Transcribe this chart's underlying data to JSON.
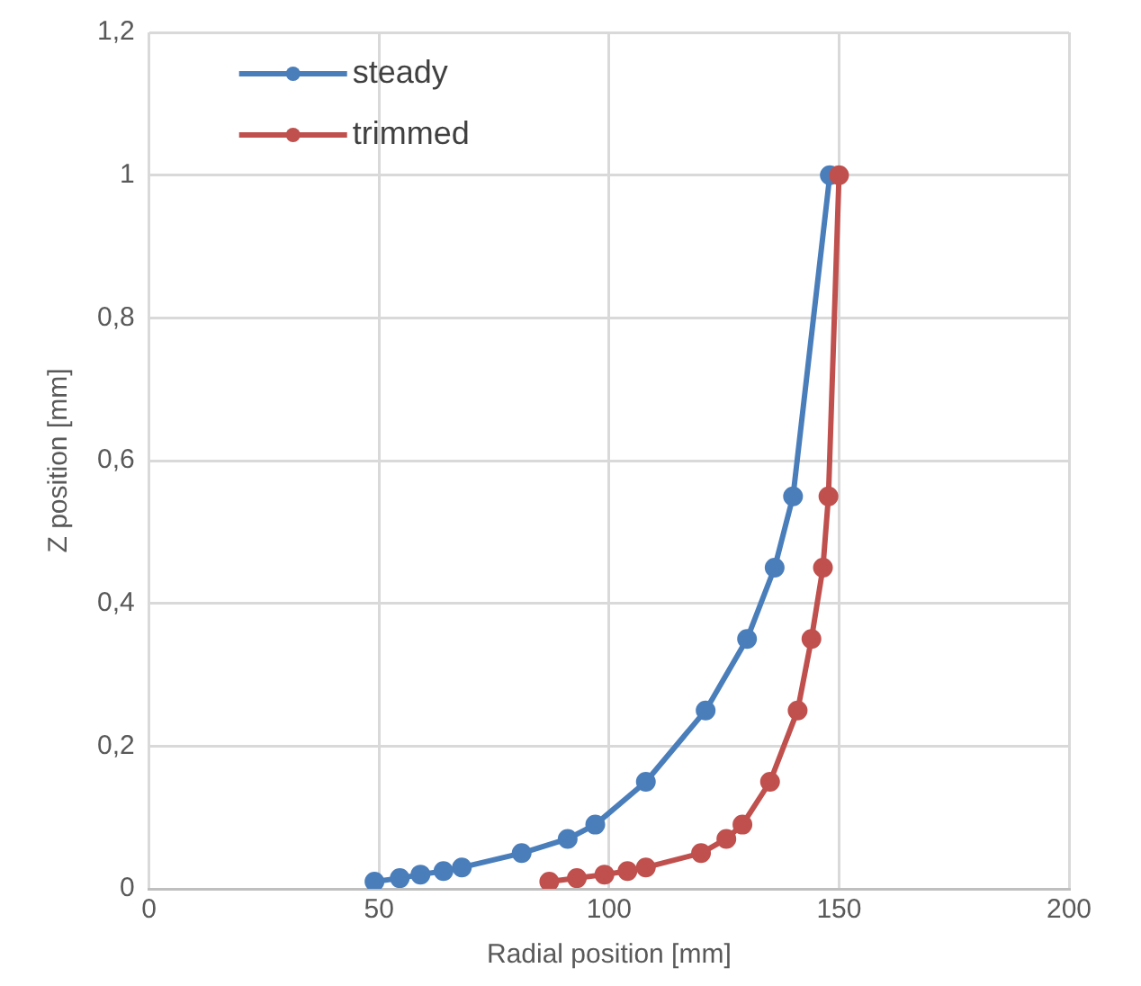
{
  "chart_data": {
    "type": "line",
    "xlabel": "Radial position [mm]",
    "ylabel": "Z position [mm]",
    "xlim": [
      0,
      200
    ],
    "xticks": [
      0,
      50,
      100,
      150,
      200
    ],
    "ylim": [
      0,
      1.2
    ],
    "yticks": [
      0,
      {
        "value": 0.2,
        "label": "0,2"
      },
      {
        "value": 0.4,
        "label": "0,4"
      },
      {
        "value": 0.6,
        "label": "0,6"
      },
      {
        "value": 0.8,
        "label": "0,8"
      },
      1,
      {
        "value": 1.2,
        "label": "1,2"
      }
    ],
    "grid": true,
    "legend": "top left",
    "marker": "circle",
    "line_style": "solid",
    "series": [
      {
        "name": "steady",
        "color": "#4a7ebb",
        "x": [
          49,
          54.5,
          59,
          64,
          68,
          81,
          91,
          97,
          108,
          121,
          130,
          136,
          140,
          148
        ],
        "values": [
          0.01,
          0.015,
          0.02,
          0.025,
          0.03,
          0.05,
          0.07,
          0.09,
          0.15,
          0.25,
          0.35,
          0.45,
          0.55,
          1.0
        ]
      },
      {
        "name": "trimmed",
        "color": "#c0504d",
        "x": [
          87,
          93,
          99,
          104,
          108,
          120,
          125.5,
          129,
          135,
          141,
          144,
          146.5,
          147.7,
          150
        ],
        "values": [
          0.01,
          0.015,
          0.02,
          0.025,
          0.03,
          0.05,
          0.07,
          0.09,
          0.15,
          0.25,
          0.35,
          0.45,
          0.55,
          1.0
        ]
      }
    ]
  }
}
